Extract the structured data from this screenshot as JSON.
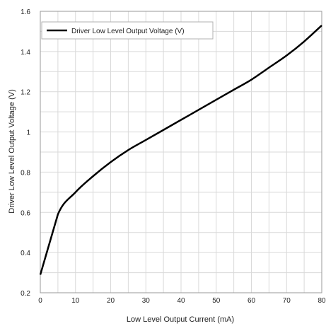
{
  "chart_data": {
    "type": "line",
    "xlabel": "Low Level Output Current (mA)",
    "ylabel": "Driver Low Level Output Voltage (V)",
    "xlim": [
      0,
      80
    ],
    "ylim": [
      0.2,
      1.6
    ],
    "x_ticks": [
      "0",
      "10",
      "20",
      "30",
      "40",
      "50",
      "60",
      "70",
      "80"
    ],
    "y_ticks": [
      "0.2",
      "0.4",
      "0.6",
      "0.8",
      "1",
      "1.2",
      "1.4",
      "1.6"
    ],
    "x_tick_values": [
      0,
      10,
      20,
      30,
      40,
      50,
      60,
      70,
      80
    ],
    "y_tick_values": [
      0.2,
      0.4,
      0.6,
      0.8,
      1.0,
      1.2,
      1.4,
      1.6
    ],
    "grid": true,
    "legend_position": "top-left",
    "series": [
      {
        "name": "Driver Low Level Output Voltage (V)",
        "color": "#000000",
        "x": [
          0,
          5,
          10,
          15,
          20,
          25,
          30,
          35,
          40,
          45,
          50,
          55,
          60,
          65,
          70,
          75,
          80
        ],
        "y": [
          0.29,
          0.59,
          0.7,
          0.78,
          0.85,
          0.91,
          0.96,
          1.01,
          1.06,
          1.11,
          1.16,
          1.21,
          1.26,
          1.32,
          1.38,
          1.45,
          1.53
        ]
      }
    ]
  }
}
